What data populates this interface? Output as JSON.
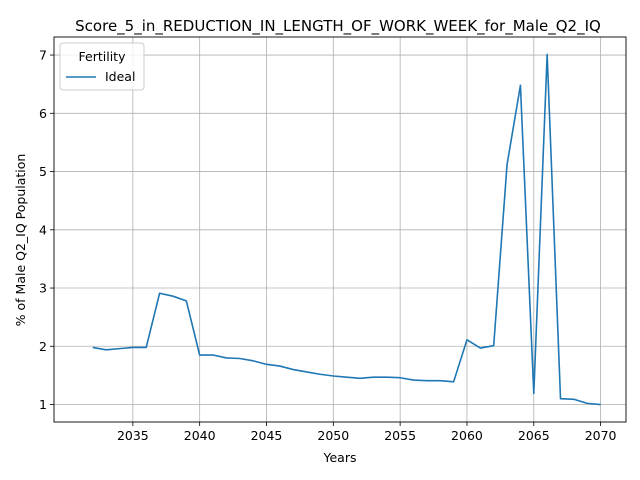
{
  "chart_data": {
    "type": "line",
    "title": "Score_5_in_REDUCTION_IN_LENGTH_OF_WORK_WEEK_for_Male_Q2_IQ",
    "xlabel": "Years",
    "ylabel": "% of Male Q2_IQ Population",
    "xlim": [
      2029.1,
      2071.9
    ],
    "ylim": [
      0.7,
      7.31
    ],
    "xticks": [
      2035,
      2040,
      2045,
      2050,
      2055,
      2060,
      2065,
      2070
    ],
    "yticks": [
      1,
      2,
      3,
      4,
      5,
      6,
      7
    ],
    "grid": true,
    "legend": {
      "title": "Fertility",
      "position": "top-left"
    },
    "series": [
      {
        "name": "Ideal",
        "color": "#1f77b4",
        "x": [
          2032,
          2033,
          2034,
          2035,
          2036,
          2037,
          2038,
          2039,
          2040,
          2041,
          2042,
          2043,
          2044,
          2045,
          2046,
          2047,
          2048,
          2049,
          2050,
          2051,
          2052,
          2053,
          2054,
          2055,
          2056,
          2057,
          2058,
          2059,
          2060,
          2061,
          2062,
          2063,
          2064,
          2065,
          2066,
          2067,
          2068,
          2069,
          2070
        ],
        "values": [
          1.98,
          1.94,
          1.96,
          1.98,
          1.98,
          2.91,
          2.86,
          2.78,
          1.85,
          1.85,
          1.8,
          1.79,
          1.75,
          1.69,
          1.66,
          1.6,
          1.56,
          1.52,
          1.49,
          1.47,
          1.45,
          1.47,
          1.47,
          1.46,
          1.42,
          1.41,
          1.41,
          1.39,
          2.11,
          1.97,
          2.01,
          5.12,
          6.48,
          1.19,
          7.01,
          1.1,
          1.09,
          1.02,
          1.0
        ]
      }
    ]
  }
}
